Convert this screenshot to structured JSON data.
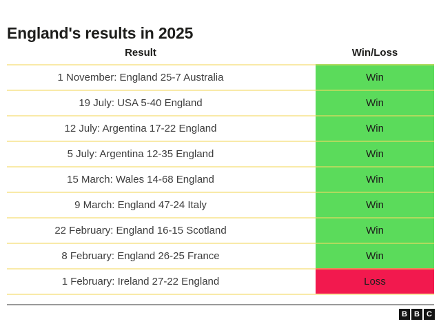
{
  "title": "England's results in 2025",
  "table": {
    "headers": {
      "result": "Result",
      "win_loss": "Win/Loss"
    },
    "rows": [
      {
        "result": "1 November: England 25-7 Australia",
        "outcome": "Win"
      },
      {
        "result": "19 July: USA 5-40 England",
        "outcome": "Win"
      },
      {
        "result": "12 July: Argentina 17-22 England",
        "outcome": "Win"
      },
      {
        "result": "5 July: Argentina 12-35 England",
        "outcome": "Win"
      },
      {
        "result": "15 March: Wales 14-68 England",
        "outcome": "Win"
      },
      {
        "result": "9 March: England 47-24 Italy",
        "outcome": "Win"
      },
      {
        "result": "22 February: England 16-15 Scotland",
        "outcome": "Win"
      },
      {
        "result": "8 February: England 26-25 France",
        "outcome": "Win"
      },
      {
        "result": "1 February: Ireland 27-22 England",
        "outcome": "Loss"
      }
    ]
  },
  "chart_data": {
    "type": "table",
    "title": "England's results in 2025",
    "columns": [
      "Result",
      "Win/Loss"
    ],
    "rows": [
      [
        "1 November: England 25-7 Australia",
        "Win"
      ],
      [
        "19 July: USA 5-40 England",
        "Win"
      ],
      [
        "12 July: Argentina 17-22 England",
        "Win"
      ],
      [
        "5 July: Argentina 12-35 England",
        "Win"
      ],
      [
        "15 March: Wales 14-68 England",
        "Win"
      ],
      [
        "9 March: England 47-24 Italy",
        "Win"
      ],
      [
        "22 February: England 16-15 Scotland",
        "Win"
      ],
      [
        "8 February: England 26-25 France",
        "Win"
      ],
      [
        "1 February: Ireland 27-22 England",
        "Loss"
      ]
    ],
    "layout_hints": {
      "win_count": 8,
      "loss_count": 1,
      "outcome_column_colored": true
    }
  },
  "colors": {
    "win_bg": "#5bdb5b",
    "loss_bg": "#f2194e",
    "row_divider": "rgba(244,216,96,0.55)",
    "footer_rule": "#9a9a9a",
    "text_primary": "#1d1d1b",
    "text_row": "#3d3d3d"
  },
  "footer": {
    "logo": {
      "letters": [
        "B",
        "B",
        "C"
      ]
    }
  }
}
